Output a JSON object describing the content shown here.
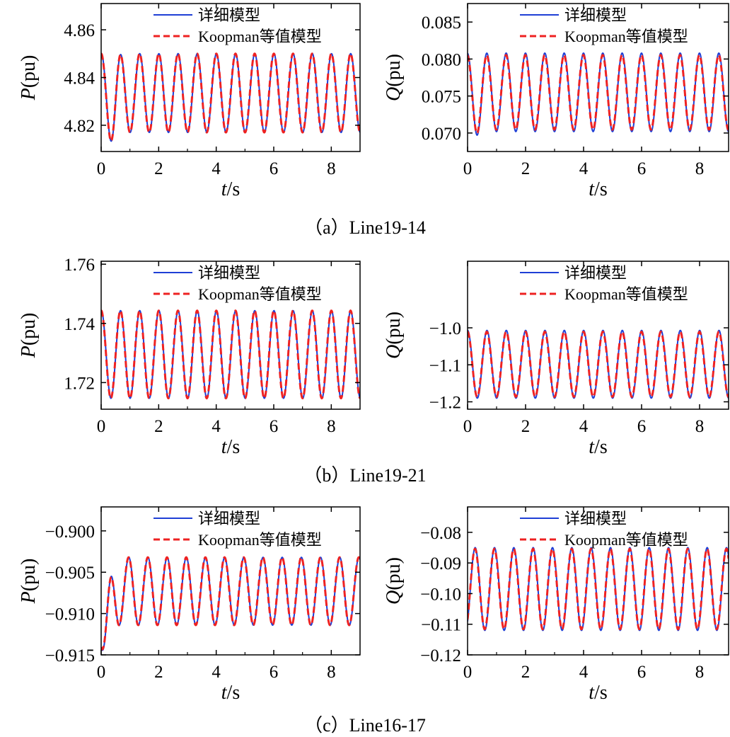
{
  "figure": {
    "legend": {
      "detailed": "详细模型",
      "koopman": "Koopman等值模型"
    },
    "colors": {
      "detailed": "#1f3fd6",
      "koopman": "#ee2222",
      "axis": "#000000"
    },
    "rows": [
      {
        "caption": "（a）Line19-14"
      },
      {
        "caption": "（b）Line19-21"
      },
      {
        "caption": "（c）Line16-17"
      }
    ]
  },
  "chart_data": [
    {
      "type": "line",
      "panel": "a-P",
      "ylabel_var": "P",
      "ylabel_unit": "(pu)",
      "xlabel_var": "t",
      "xlabel_unit": "/s",
      "xlim": [
        0,
        9
      ],
      "ylim": [
        4.809,
        4.871
      ],
      "xticks": [
        0,
        2,
        4,
        6,
        8
      ],
      "xticklabels": [
        "0",
        "2",
        "4",
        "6",
        "8"
      ],
      "yticks": [
        4.82,
        4.84,
        4.86
      ],
      "yticklabels": [
        "4.82",
        "4.84",
        "4.86"
      ],
      "model": {
        "mean": 4.8335,
        "amp": 0.0165,
        "freq": 1.5,
        "phase": 1.5,
        "dip_depth": 0.004,
        "dip_time": 0.4,
        "koopman_amp_ratio": 1.0
      },
      "series": [
        {
          "name": "详细模型"
        },
        {
          "name": "Koopman等值模型"
        }
      ]
    },
    {
      "type": "line",
      "panel": "a-Q",
      "ylabel_var": "Q",
      "ylabel_unit": "(pu)",
      "xlabel_var": "t",
      "xlabel_unit": "/s",
      "xlim": [
        0,
        9
      ],
      "ylim": [
        0.0675,
        0.0875
      ],
      "xticks": [
        0,
        2,
        4,
        6,
        8
      ],
      "xticklabels": [
        "0",
        "2",
        "4",
        "6",
        "8"
      ],
      "yticks": [
        0.07,
        0.075,
        0.08,
        0.085
      ],
      "yticklabels": [
        "0.070",
        "0.075",
        "0.080",
        "0.085"
      ],
      "model": {
        "mean": 0.0755,
        "amp": 0.0053,
        "freq": 1.5,
        "phase": 1.6,
        "dip_depth": 0.0005,
        "dip_time": 0.3,
        "koopman_amp_ratio": 0.95
      },
      "series": [
        {
          "name": "详细模型"
        },
        {
          "name": "Koopman等值模型"
        }
      ]
    },
    {
      "type": "line",
      "panel": "b-P",
      "ylabel_var": "P",
      "ylabel_unit": "(pu)",
      "xlabel_var": "t",
      "xlabel_unit": "/s",
      "xlim": [
        0,
        9
      ],
      "ylim": [
        1.711,
        1.761
      ],
      "xticks": [
        0,
        2,
        4,
        6,
        8
      ],
      "xticklabels": [
        "0",
        "2",
        "4",
        "6",
        "8"
      ],
      "yticks": [
        1.72,
        1.74,
        1.76
      ],
      "yticklabels": [
        "1.72",
        "1.74",
        "1.76"
      ],
      "model": {
        "mean": 1.7295,
        "amp": 0.0148,
        "freq": 1.5,
        "phase": 1.5,
        "dip_depth": 0.0,
        "dip_time": 0.3,
        "koopman_amp_ratio": 1.0
      },
      "series": [
        {
          "name": "详细模型"
        },
        {
          "name": "Koopman等值模型"
        }
      ]
    },
    {
      "type": "line",
      "panel": "b-Q",
      "ylabel_var": "Q",
      "ylabel_unit": "(pu)",
      "xlabel_var": "t",
      "xlabel_unit": "/s",
      "xlim": [
        0,
        9
      ],
      "ylim": [
        -1.22,
        -0.82
      ],
      "xticks": [
        0,
        2,
        4,
        6,
        8
      ],
      "xticklabels": [
        "0",
        "2",
        "4",
        "6",
        "8"
      ],
      "yticks": [
        -1.2,
        -1.1,
        -1.0
      ],
      "yticklabels": [
        "−1.2",
        "−1.1",
        "−1.0"
      ],
      "model": {
        "mean": -1.0985,
        "amp": 0.0915,
        "freq": 1.5,
        "phase": 1.55,
        "dip_depth": 0.0,
        "dip_time": 0.3,
        "koopman_amp_ratio": 0.96
      },
      "series": [
        {
          "name": "详细模型"
        },
        {
          "name": "Koopman等值模型"
        }
      ]
    },
    {
      "type": "line",
      "panel": "c-P",
      "ylabel_var": "P",
      "ylabel_unit": "(pu)",
      "xlabel_var": "t",
      "xlabel_unit": "/s",
      "xlim": [
        0,
        9
      ],
      "ylim": [
        -0.915,
        -0.8971
      ],
      "xticks": [
        0,
        2,
        4,
        6,
        8
      ],
      "xticklabels": [
        "0",
        "2",
        "4",
        "6",
        "8"
      ],
      "yticks": [
        -0.915,
        -0.91,
        -0.905,
        -0.9
      ],
      "yticklabels": [
        "−0.915",
        "−0.910",
        "−0.905",
        "−0.900"
      ],
      "model": {
        "mean": -0.9073,
        "amp": 0.0041,
        "freq": 1.5,
        "phase": -1.2,
        "dip_depth": 0.006,
        "dip_time": 0.15,
        "koopman_amp_ratio": 1.0
      },
      "series": [
        {
          "name": "详细模型"
        },
        {
          "name": "Koopman等值模型"
        }
      ]
    },
    {
      "type": "line",
      "panel": "c-Q",
      "ylabel_var": "Q",
      "ylabel_unit": "(pu)",
      "xlabel_var": "t",
      "xlabel_unit": "/s",
      "xlim": [
        0,
        9
      ],
      "ylim": [
        -0.12,
        -0.0717
      ],
      "xticks": [
        0,
        2,
        4,
        6,
        8
      ],
      "xticklabels": [
        "0",
        "2",
        "4",
        "6",
        "8"
      ],
      "yticks": [
        -0.12,
        -0.11,
        -0.1,
        -0.09,
        -0.08
      ],
      "yticklabels": [
        "−0.12",
        "−0.11",
        "−0.10",
        "−0.09",
        "−0.08"
      ],
      "model": {
        "mean": -0.0985,
        "amp": 0.0135,
        "freq": 1.5,
        "phase": -0.9,
        "dip_depth": 0.0,
        "dip_time": 0.3,
        "koopman_amp_ratio": 0.97
      },
      "series": [
        {
          "name": "详细模型"
        },
        {
          "name": "Koopman等值模型"
        }
      ]
    }
  ]
}
